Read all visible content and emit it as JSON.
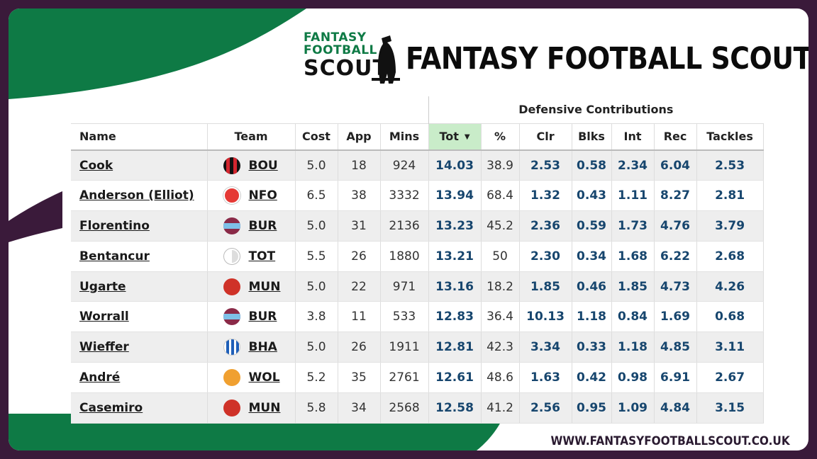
{
  "brand": {
    "logo_lines": [
      "FANTASY",
      "FOOTBALL",
      "SCOUT"
    ],
    "title": "FANTASY FOOTBALL SCOUT",
    "url": "WWW.FANTASYFOOTBALLSCOUT.CO.UK"
  },
  "colors": {
    "frame": "#3a1a3a",
    "accent_green": "#0e7a45",
    "sorted_header": "#c9ecc9",
    "stat_blue": "#17466e"
  },
  "table": {
    "group_header": "Defensive Contributions",
    "columns": {
      "name": "Name",
      "team": "Team",
      "cost": "Cost",
      "app": "App",
      "mins": "Mins",
      "tot": "Tot",
      "pct": "%",
      "clr": "Clr",
      "blks": "Blks",
      "int": "Int",
      "rec": "Rec",
      "tackles": "Tackles"
    },
    "sort_indicator": "chevron-down-icon",
    "rows": [
      {
        "name": "Cook",
        "team": "BOU",
        "badge": "bou-badge",
        "cost": "5.0",
        "app": "18",
        "mins": "924",
        "tot": "14.03",
        "pct": "38.9",
        "clr": "2.53",
        "blks": "0.58",
        "int": "2.34",
        "rec": "6.04",
        "tackles": "2.53"
      },
      {
        "name": "Anderson (Elliot)",
        "team": "NFO",
        "badge": "nfo-badge",
        "cost": "6.5",
        "app": "38",
        "mins": "3332",
        "tot": "13.94",
        "pct": "68.4",
        "clr": "1.32",
        "blks": "0.43",
        "int": "1.11",
        "rec": "8.27",
        "tackles": "2.81"
      },
      {
        "name": "Florentino",
        "team": "BUR",
        "badge": "bur-badge",
        "cost": "5.0",
        "app": "31",
        "mins": "2136",
        "tot": "13.23",
        "pct": "45.2",
        "clr": "2.36",
        "blks": "0.59",
        "int": "1.73",
        "rec": "4.76",
        "tackles": "3.79"
      },
      {
        "name": "Bentancur",
        "team": "TOT",
        "badge": "tot-badge",
        "cost": "5.5",
        "app": "26",
        "mins": "1880",
        "tot": "13.21",
        "pct": "50",
        "clr": "2.30",
        "blks": "0.34",
        "int": "1.68",
        "rec": "6.22",
        "tackles": "2.68"
      },
      {
        "name": "Ugarte",
        "team": "MUN",
        "badge": "mun-badge",
        "cost": "5.0",
        "app": "22",
        "mins": "971",
        "tot": "13.16",
        "pct": "18.2",
        "clr": "1.85",
        "blks": "0.46",
        "int": "1.85",
        "rec": "4.73",
        "tackles": "4.26"
      },
      {
        "name": "Worrall",
        "team": "BUR",
        "badge": "bur-badge",
        "cost": "3.8",
        "app": "11",
        "mins": "533",
        "tot": "12.83",
        "pct": "36.4",
        "clr": "10.13",
        "blks": "1.18",
        "int": "0.84",
        "rec": "1.69",
        "tackles": "0.68"
      },
      {
        "name": "Wieffer",
        "team": "BHA",
        "badge": "bha-badge",
        "cost": "5.0",
        "app": "26",
        "mins": "1911",
        "tot": "12.81",
        "pct": "42.3",
        "clr": "3.34",
        "blks": "0.33",
        "int": "1.18",
        "rec": "4.85",
        "tackles": "3.11"
      },
      {
        "name": "André",
        "team": "WOL",
        "badge": "wol-badge",
        "cost": "5.2",
        "app": "35",
        "mins": "2761",
        "tot": "12.61",
        "pct": "48.6",
        "clr": "1.63",
        "blks": "0.42",
        "int": "0.98",
        "rec": "6.91",
        "tackles": "2.67"
      },
      {
        "name": "Casemiro",
        "team": "MUN",
        "badge": "mun-badge",
        "cost": "5.8",
        "app": "34",
        "mins": "2568",
        "tot": "12.58",
        "pct": "41.2",
        "clr": "2.56",
        "blks": "0.95",
        "int": "1.09",
        "rec": "4.84",
        "tackles": "3.15"
      }
    ]
  }
}
